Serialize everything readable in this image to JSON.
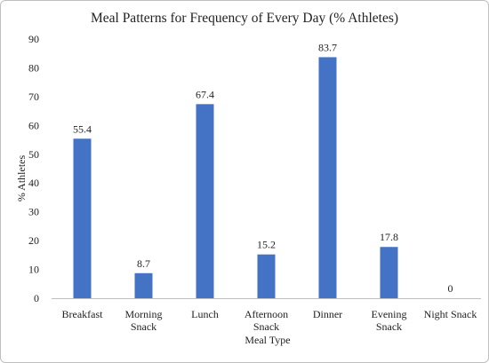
{
  "chart_data": {
    "type": "bar",
    "title": "Meal Patterns for Frequency of Every Day (% Athletes)",
    "xlabel": "Meal Type",
    "ylabel": "% Athletes",
    "ylim": [
      0,
      90
    ],
    "yticks": [
      0,
      10,
      20,
      30,
      40,
      50,
      60,
      70,
      80,
      90
    ],
    "grid": false,
    "legend": "none",
    "bar_color": "#4472c4",
    "categories": [
      [
        "Breakfast"
      ],
      [
        "Morning",
        "Snack"
      ],
      [
        "Lunch"
      ],
      [
        "Afternoon",
        "Snack"
      ],
      [
        "Dinner"
      ],
      [
        "Evening",
        "Snack"
      ],
      [
        "Night Snack"
      ]
    ],
    "values": [
      55.4,
      8.7,
      67.4,
      15.2,
      83.7,
      17.8,
      0
    ],
    "data_labels": [
      "55.4",
      "8.7",
      "67.4",
      "15.2",
      "83.7",
      "17.8",
      "0"
    ]
  }
}
